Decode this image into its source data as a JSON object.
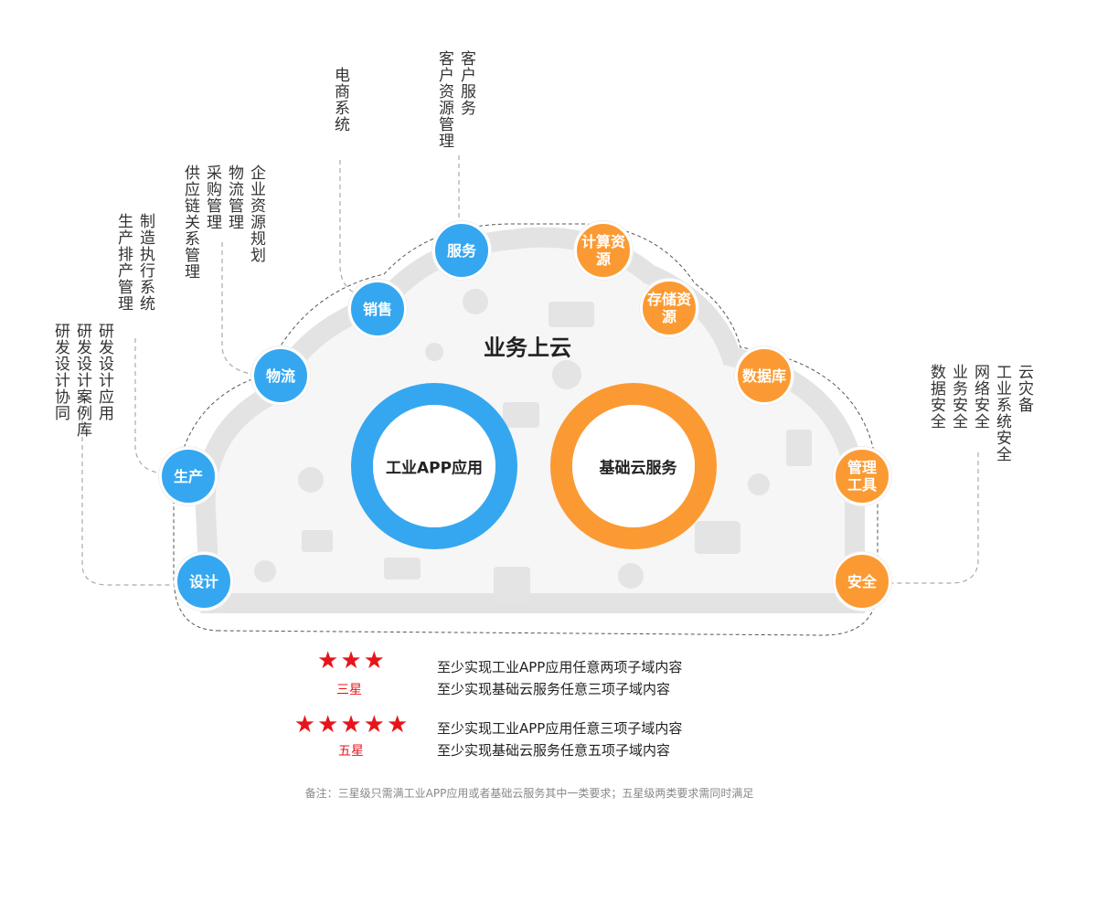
{
  "title": "业务上云",
  "colors": {
    "blue": "#35a7f0",
    "orange": "#fb9a33",
    "star_red": "#e8141b"
  },
  "rings": {
    "app": "工业APP应用",
    "base": "基础云服务"
  },
  "app_nodes": [
    {
      "label": "服务",
      "subitems": [
        "客户服务",
        "客户资源管理"
      ]
    },
    {
      "label": "销售",
      "subitems": [
        "电商系统"
      ]
    },
    {
      "label": "物流",
      "subitems": [
        "企业资源规划",
        "物流管理",
        "采购管理",
        "供应链关系管理"
      ]
    },
    {
      "label": "生产",
      "subitems": [
        "制造执行系统",
        "生产排产管理"
      ]
    },
    {
      "label": "设计",
      "subitems": [
        "研发设计应用",
        "研发设计案例库",
        "研发设计协同"
      ]
    }
  ],
  "base_nodes": [
    {
      "label": "计算资源"
    },
    {
      "label": "存储资源"
    },
    {
      "label": "数据库"
    },
    {
      "label": "管理工具"
    },
    {
      "label": "安全",
      "subitems": [
        "云灾备",
        "工业系统安全",
        "网络安全",
        "业务安全",
        "数据安全"
      ]
    }
  ],
  "levels": [
    {
      "stars": 3,
      "star_glyph": "★",
      "name": "三星",
      "requirements": [
        "至少实现工业APP应用任意两项子域内容",
        "至少实现基础云服务任意三项子域内容"
      ]
    },
    {
      "stars": 5,
      "star_glyph": "★",
      "name": "五星",
      "requirements": [
        "至少实现工业APP应用任意三项子域内容",
        "至少实现基础云服务任意五项子域内容"
      ]
    }
  ],
  "note": "备注：三星级只需满工业APP应用或者基础云服务其中一类要求；五星级两类要求需同时满足"
}
